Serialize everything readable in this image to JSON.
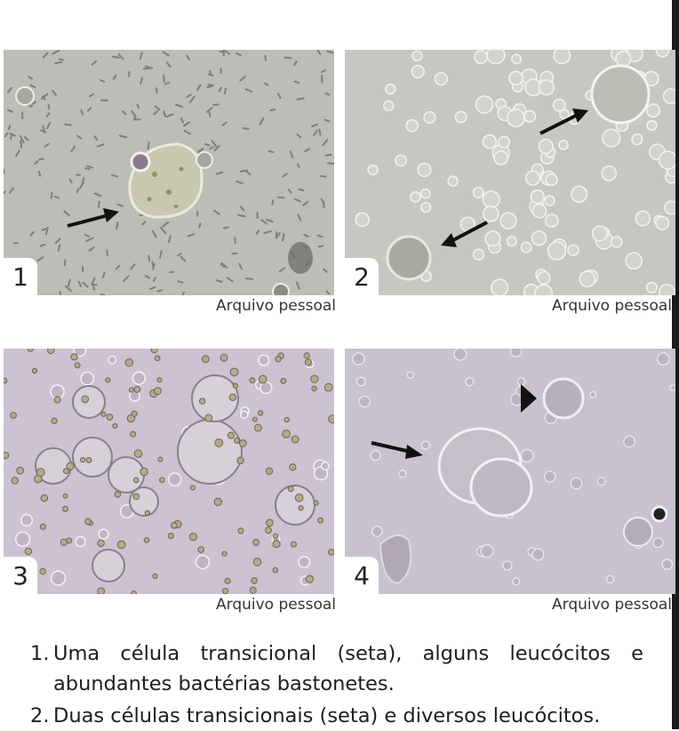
{
  "panels": [
    {
      "number": "1",
      "credit": "Arquivo pessoal"
    },
    {
      "number": "2",
      "credit": "Arquivo pessoal"
    },
    {
      "number": "3",
      "credit": "Arquivo pessoal"
    },
    {
      "number": "4",
      "credit": "Arquivo pessoal"
    }
  ],
  "captions": [
    {
      "number": "1.",
      "text": "Uma célula transicional (seta), alguns leucócitos e abundantes bactérias bastonetes."
    },
    {
      "number": "2.",
      "text": "Duas células transicionais (seta) e diversos leucócitos."
    }
  ],
  "colors": {
    "panel_gray": "#bcbcb6",
    "panel_lilac": "#c9bfcf",
    "arrow": "#111111"
  }
}
